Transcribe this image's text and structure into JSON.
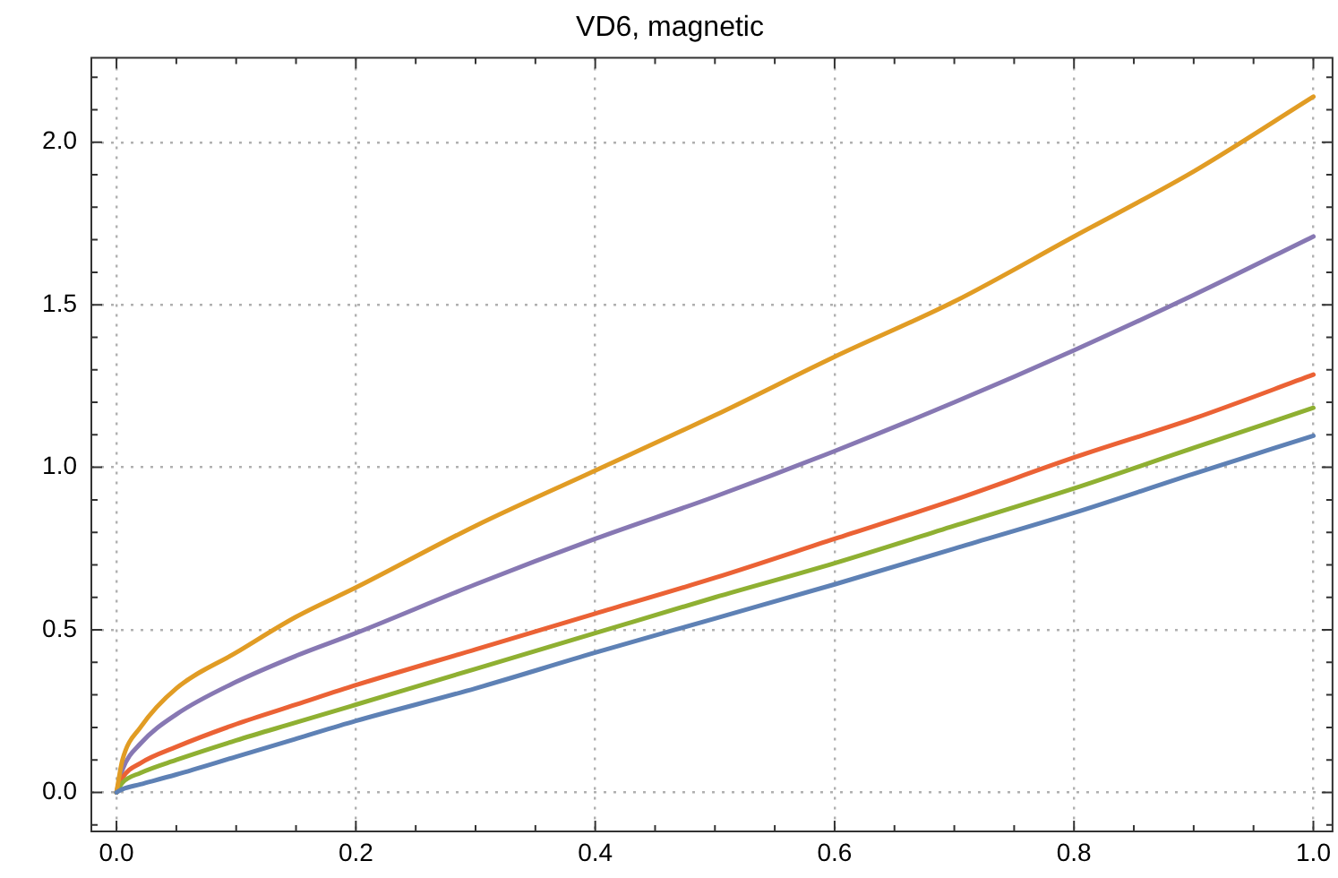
{
  "chart_data": {
    "type": "line",
    "title": "VD6, magnetic",
    "x": [
      0,
      0.005,
      0.02,
      0.05,
      0.1,
      0.15,
      0.2,
      0.3,
      0.4,
      0.5,
      0.6,
      0.7,
      0.8,
      0.9,
      1.0
    ],
    "series": [
      {
        "color": "#5e81b5",
        "values": [
          0,
          0.01,
          0.025,
          0.055,
          0.11,
          0.165,
          0.22,
          0.32,
          0.43,
          0.535,
          0.64,
          0.75,
          0.86,
          0.98,
          1.097
        ]
      },
      {
        "color": "#e19c24",
        "values": [
          0,
          0.1,
          0.2,
          0.32,
          0.43,
          0.54,
          0.63,
          0.82,
          0.99,
          1.16,
          1.34,
          1.51,
          1.71,
          1.91,
          2.14
        ]
      },
      {
        "color": "#8fb032",
        "values": [
          0,
          0.03,
          0.06,
          0.1,
          0.16,
          0.215,
          0.27,
          0.38,
          0.49,
          0.6,
          0.705,
          0.82,
          0.935,
          1.06,
          1.183
        ]
      },
      {
        "color": "#eb6235",
        "values": [
          0,
          0.045,
          0.09,
          0.14,
          0.21,
          0.27,
          0.33,
          0.44,
          0.55,
          0.66,
          0.78,
          0.9,
          1.03,
          1.15,
          1.285
        ]
      },
      {
        "color": "#8778b3",
        "values": [
          0,
          0.07,
          0.15,
          0.24,
          0.34,
          0.42,
          0.49,
          0.64,
          0.78,
          0.91,
          1.05,
          1.2,
          1.36,
          1.53,
          1.71
        ]
      }
    ],
    "xlim": [
      -0.021,
      1.016
    ],
    "ylim": [
      -0.12,
      2.26
    ],
    "xticks": [
      {
        "value": 0,
        "label": "0.0"
      },
      {
        "value": 0.05,
        "label": null
      },
      {
        "value": 0.1,
        "label": null
      },
      {
        "value": 0.15,
        "label": null
      },
      {
        "value": 0.2,
        "label": "0.2"
      },
      {
        "value": 0.25,
        "label": null
      },
      {
        "value": 0.3,
        "label": null
      },
      {
        "value": 0.35,
        "label": null
      },
      {
        "value": 0.4,
        "label": "0.4"
      },
      {
        "value": 0.45,
        "label": null
      },
      {
        "value": 0.5,
        "label": null
      },
      {
        "value": 0.55,
        "label": null
      },
      {
        "value": 0.6,
        "label": "0.6"
      },
      {
        "value": 0.65,
        "label": null
      },
      {
        "value": 0.7,
        "label": null
      },
      {
        "value": 0.75,
        "label": null
      },
      {
        "value": 0.8,
        "label": "0.8"
      },
      {
        "value": 0.85,
        "label": null
      },
      {
        "value": 0.9,
        "label": null
      },
      {
        "value": 0.95,
        "label": null
      },
      {
        "value": 1.0,
        "label": "1.0"
      }
    ],
    "yticks": [
      {
        "value": -0.1,
        "label": null
      },
      {
        "value": 0,
        "label": "0.0"
      },
      {
        "value": 0.1,
        "label": null
      },
      {
        "value": 0.2,
        "label": null
      },
      {
        "value": 0.3,
        "label": null
      },
      {
        "value": 0.4,
        "label": null
      },
      {
        "value": 0.5,
        "label": "0.5"
      },
      {
        "value": 0.6,
        "label": null
      },
      {
        "value": 0.7,
        "label": null
      },
      {
        "value": 0.8,
        "label": null
      },
      {
        "value": 0.9,
        "label": null
      },
      {
        "value": 1.0,
        "label": "1.0"
      },
      {
        "value": 1.1,
        "label": null
      },
      {
        "value": 1.2,
        "label": null
      },
      {
        "value": 1.3,
        "label": null
      },
      {
        "value": 1.4,
        "label": null
      },
      {
        "value": 1.5,
        "label": "1.5"
      },
      {
        "value": 1.6,
        "label": null
      },
      {
        "value": 1.7,
        "label": null
      },
      {
        "value": 1.8,
        "label": null
      },
      {
        "value": 1.9,
        "label": null
      },
      {
        "value": 2.0,
        "label": "2.0"
      },
      {
        "value": 2.1,
        "label": null
      },
      {
        "value": 2.2,
        "label": null
      }
    ],
    "grid": true,
    "legend": false,
    "marker": "none",
    "line_style": "solid"
  }
}
